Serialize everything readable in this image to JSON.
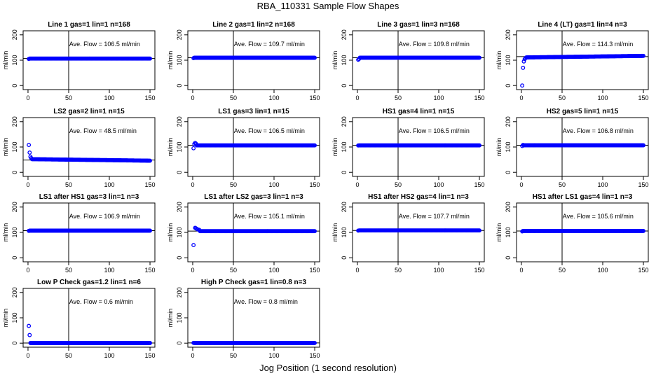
{
  "title": "RBA_110331  Sample Flow Shapes",
  "xlabel": "Jog Position (1 second resolution)",
  "colors": {
    "points": "#0000ff",
    "lines": "#000000",
    "background": "#ffffff"
  },
  "chart_data": [
    {
      "type": "scatter",
      "title": "Line 1 gas=1 lin=1 n=168",
      "ylabel": "ml/min",
      "xlim": [
        0,
        150
      ],
      "ylim": [
        0,
        200
      ],
      "xticks": [
        0,
        50,
        100,
        150
      ],
      "yticks": [
        0,
        100,
        200
      ],
      "x_start": 1,
      "x_end": 150,
      "settle": 105.0,
      "steady_y": [
        106.5,
        106.5
      ],
      "early_points": [
        [
          1,
          105
        ]
      ],
      "vline_x": 50,
      "hline_y": 106.5,
      "annotation": "Ave. Flow =  106.5  ml/min"
    },
    {
      "type": "scatter",
      "title": "Line 2 gas=1 lin=2 n=168",
      "ylabel": "ml/min",
      "xlim": [
        0,
        150
      ],
      "ylim": [
        0,
        200
      ],
      "xticks": [
        0,
        50,
        100,
        150
      ],
      "yticks": [
        0,
        100,
        200
      ],
      "x_start": 1,
      "x_end": 150,
      "settle": 109.0,
      "steady_y": [
        109.7,
        109.7
      ],
      "early_points": [
        [
          1,
          108
        ]
      ],
      "vline_x": 50,
      "hline_y": 109.7,
      "annotation": "Ave. Flow =  109.7  ml/min"
    },
    {
      "type": "scatter",
      "title": "Line 3 gas=1 lin=3 n=168",
      "ylabel": "ml/min",
      "xlim": [
        0,
        150
      ],
      "ylim": [
        0,
        200
      ],
      "xticks": [
        0,
        50,
        100,
        150
      ],
      "yticks": [
        0,
        100,
        200
      ],
      "x_start": 1,
      "x_end": 150,
      "settle": 105.0,
      "steady_y": [
        109.8,
        109.8
      ],
      "early_points": [
        [
          1,
          102
        ],
        [
          2,
          105
        ]
      ],
      "vline_x": 50,
      "hline_y": 109.8,
      "annotation": "Ave. Flow =  109.8  ml/min"
    },
    {
      "type": "scatter",
      "title": "Line 4 (LT) gas=1 lin=4 n=3",
      "ylabel": "ml/min",
      "xlim": [
        0,
        150
      ],
      "ylim": [
        0,
        200
      ],
      "xticks": [
        0,
        50,
        100,
        150
      ],
      "yticks": [
        0,
        100,
        200
      ],
      "x_start": 1,
      "x_end": 150,
      "settle": 110.0,
      "steady_y": [
        111,
        117
      ],
      "early_points": [
        [
          1,
          0
        ],
        [
          2,
          70
        ],
        [
          3,
          95
        ],
        [
          4,
          104
        ],
        [
          5,
          108
        ]
      ],
      "vline_x": 50,
      "hline_y": 114.3,
      "annotation": "Ave. Flow =  114.3  ml/min"
    },
    {
      "type": "scatter",
      "title": "LS2 gas=2 lin=1 n=15",
      "ylabel": "ml/min",
      "xlim": [
        0,
        150
      ],
      "ylim": [
        0,
        200
      ],
      "xticks": [
        0,
        50,
        100,
        150
      ],
      "yticks": [
        0,
        100,
        200
      ],
      "x_start": 1,
      "x_end": 150,
      "settle": 48.0,
      "steady_y": [
        52,
        46
      ],
      "early_points": [
        [
          1,
          108
        ],
        [
          2,
          78
        ],
        [
          3,
          62
        ],
        [
          4,
          56
        ]
      ],
      "vline_x": 50,
      "hline_y": 48.5,
      "annotation": "Ave. Flow =  48.5  ml/min"
    },
    {
      "type": "scatter",
      "title": "LS1 gas=3 lin=1 n=15",
      "ylabel": "ml/min",
      "xlim": [
        0,
        150
      ],
      "ylim": [
        0,
        200
      ],
      "xticks": [
        0,
        50,
        100,
        150
      ],
      "yticks": [
        0,
        100,
        200
      ],
      "x_start": 1,
      "x_end": 150,
      "settle": 106.0,
      "steady_y": [
        106.5,
        106.5
      ],
      "early_points": [
        [
          1,
          95
        ],
        [
          2,
          112
        ],
        [
          3,
          116
        ],
        [
          4,
          113
        ]
      ],
      "vline_x": 50,
      "hline_y": 106.5,
      "annotation": "Ave. Flow =  106.5  ml/min"
    },
    {
      "type": "scatter",
      "title": "HS1 gas=4 lin=1 n=15",
      "ylabel": "ml/min",
      "xlim": [
        0,
        150
      ],
      "ylim": [
        0,
        200
      ],
      "xticks": [
        0,
        50,
        100,
        150
      ],
      "yticks": [
        0,
        100,
        200
      ],
      "x_start": 1,
      "x_end": 150,
      "settle": 106.0,
      "steady_y": [
        106.5,
        106.5
      ],
      "early_points": [
        [
          1,
          106
        ]
      ],
      "vline_x": 50,
      "hline_y": 106.5,
      "annotation": "Ave. Flow =  106.5  ml/min"
    },
    {
      "type": "scatter",
      "title": "HS2 gas=5 lin=1 n=15",
      "ylabel": "ml/min",
      "xlim": [
        0,
        150
      ],
      "ylim": [
        0,
        200
      ],
      "xticks": [
        0,
        50,
        100,
        150
      ],
      "yticks": [
        0,
        100,
        200
      ],
      "x_start": 1,
      "x_end": 150,
      "settle": 106.0,
      "steady_y": [
        106.8,
        106.8
      ],
      "early_points": [
        [
          1,
          104
        ],
        [
          2,
          108
        ]
      ],
      "vline_x": 50,
      "hline_y": 106.8,
      "annotation": "Ave. Flow =  106.8  ml/min"
    },
    {
      "type": "scatter",
      "title": "LS1 after HS1 gas=3 lin=1 n=3",
      "ylabel": "ml/min",
      "xlim": [
        0,
        150
      ],
      "ylim": [
        0,
        200
      ],
      "xticks": [
        0,
        50,
        100,
        150
      ],
      "yticks": [
        0,
        100,
        200
      ],
      "x_start": 1,
      "x_end": 150,
      "settle": 106.0,
      "steady_y": [
        106.9,
        106.9
      ],
      "early_points": [
        [
          1,
          106
        ]
      ],
      "vline_x": 50,
      "hline_y": 106.9,
      "annotation": "Ave. Flow =  106.9  ml/min"
    },
    {
      "type": "scatter",
      "title": "LS1 after LS2 gas=3 lin=1 n=3",
      "ylabel": "ml/min",
      "xlim": [
        0,
        150
      ],
      "ylim": [
        0,
        200
      ],
      "xticks": [
        0,
        50,
        100,
        150
      ],
      "yticks": [
        0,
        100,
        200
      ],
      "x_start": 1,
      "x_end": 150,
      "settle": 105.0,
      "steady_y": [
        105.1,
        105.1
      ],
      "early_points": [
        [
          1,
          50
        ],
        [
          3,
          118
        ],
        [
          4,
          116
        ],
        [
          5,
          114
        ],
        [
          6,
          112
        ],
        [
          8,
          110
        ]
      ],
      "vline_x": 50,
      "hline_y": 105.1,
      "annotation": "Ave. Flow =  105.1  ml/min"
    },
    {
      "type": "scatter",
      "title": "HS1 after HS2 gas=4 lin=1 n=3",
      "ylabel": "ml/min",
      "xlim": [
        0,
        150
      ],
      "ylim": [
        0,
        200
      ],
      "xticks": [
        0,
        50,
        100,
        150
      ],
      "yticks": [
        0,
        100,
        200
      ],
      "x_start": 1,
      "x_end": 150,
      "settle": 107.0,
      "steady_y": [
        107.7,
        107.7
      ],
      "early_points": [
        [
          1,
          107
        ]
      ],
      "vline_x": 50,
      "hline_y": 107.7,
      "annotation": "Ave. Flow =  107.7  ml/min"
    },
    {
      "type": "scatter",
      "title": "HS1 after LS1 gas=4 lin=1 n=3",
      "ylabel": "ml/min",
      "xlim": [
        0,
        150
      ],
      "ylim": [
        0,
        200
      ],
      "xticks": [
        0,
        50,
        100,
        150
      ],
      "yticks": [
        0,
        100,
        200
      ],
      "x_start": 1,
      "x_end": 150,
      "settle": 105.0,
      "steady_y": [
        105.6,
        105.6
      ],
      "early_points": [
        [
          1,
          104
        ]
      ],
      "vline_x": 50,
      "hline_y": 105.6,
      "annotation": "Ave. Flow =  105.6  ml/min"
    },
    {
      "type": "scatter",
      "title": "Low P Check gas=1.2 lin=1 n=6",
      "ylabel": "ml/min",
      "xlim": [
        0,
        150
      ],
      "ylim": [
        0,
        200
      ],
      "xticks": [
        0,
        50,
        100,
        150
      ],
      "yticks": [
        0,
        100,
        200
      ],
      "x_start": 1,
      "x_end": 150,
      "settle": 0.6,
      "steady_y": [
        0.6,
        0.6
      ],
      "early_points": [
        [
          1,
          68
        ],
        [
          2,
          32
        ]
      ],
      "vline_x": 50,
      "hline_y": 0.6,
      "annotation": "Ave. Flow =  0.6  ml/min"
    },
    {
      "type": "scatter",
      "title": "High P Check gas=1 lin=0.8 n=3",
      "ylabel": "ml/min",
      "xlim": [
        0,
        150
      ],
      "ylim": [
        0,
        200
      ],
      "xticks": [
        0,
        50,
        100,
        150
      ],
      "yticks": [
        0,
        100,
        200
      ],
      "x_start": 1,
      "x_end": 150,
      "settle": 0.8,
      "steady_y": [
        0.8,
        0.8
      ],
      "early_points": [
        [
          1,
          1
        ]
      ],
      "vline_x": 50,
      "hline_y": 0.8,
      "annotation": "Ave. Flow =  0.8  ml/min"
    }
  ]
}
